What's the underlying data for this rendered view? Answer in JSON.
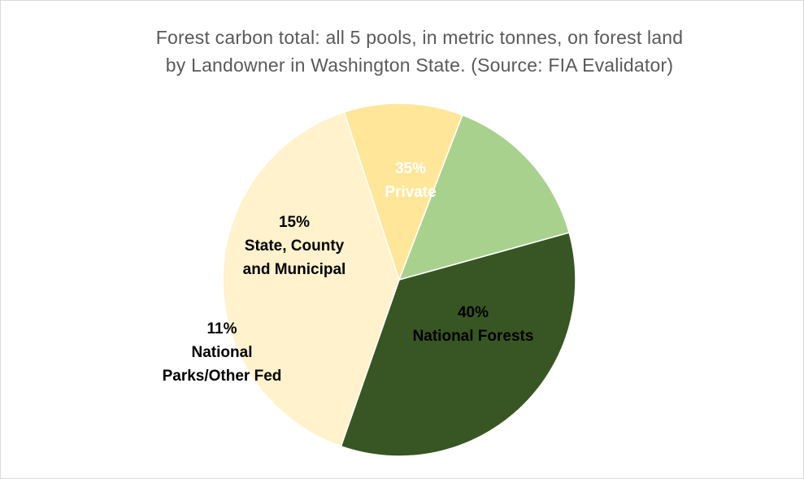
{
  "chart_data": {
    "type": "pie",
    "title_lines": [
      "Forest carbon total: all 5 pools, in metric tonnes, on forest land",
      "by Landowner in Washington State.  (Source: FIA Evalidator)"
    ],
    "slices": [
      {
        "label_lines": [
          "35%",
          "Private"
        ],
        "percent": 35,
        "color": "#375623",
        "text_color": "#ffffff"
      },
      {
        "label_lines": [
          "40%",
          "National Forests"
        ],
        "percent": 40,
        "color": "#fff2cc",
        "text_color": "#000000"
      },
      {
        "label_lines": [
          "11%",
          "National",
          "Parks/Other Fed"
        ],
        "percent": 11,
        "color": "#ffe699",
        "text_color": "#000000"
      },
      {
        "label_lines": [
          "15%",
          "State, County",
          "and Municipal"
        ],
        "percent": 15,
        "color": "#a9d18e",
        "text_color": "#000000"
      }
    ]
  }
}
